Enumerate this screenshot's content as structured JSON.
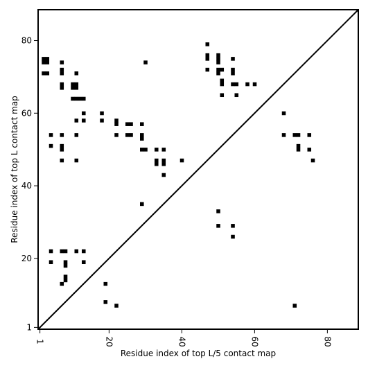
{
  "chart_data": {
    "type": "scatter",
    "title": "",
    "xlabel": "Residue index of top L/5 contact map",
    "ylabel": "Residue index of top L contact map",
    "xlim": [
      0.5,
      88.5
    ],
    "ylim": [
      0.5,
      88.5
    ],
    "xticks": [
      1,
      20,
      40,
      60,
      80
    ],
    "yticks": [
      1,
      20,
      40,
      60,
      80
    ],
    "grid": false,
    "legend": "none",
    "marker_color": "#000000",
    "diagonal_line": true,
    "series": [
      {
        "points": [
          [
            2,
            75
          ],
          [
            3,
            75
          ],
          [
            2,
            74
          ],
          [
            3,
            74
          ],
          [
            2,
            71
          ],
          [
            3,
            71
          ],
          [
            7,
            74
          ],
          [
            7,
            72
          ],
          [
            7,
            71
          ],
          [
            7,
            68
          ],
          [
            7,
            67
          ],
          [
            10,
            68
          ],
          [
            11,
            68
          ],
          [
            10,
            67
          ],
          [
            11,
            67
          ],
          [
            11,
            71
          ],
          [
            10,
            64
          ],
          [
            11,
            64
          ],
          [
            12,
            64
          ],
          [
            13,
            64
          ],
          [
            30,
            74
          ],
          [
            47,
            79
          ],
          [
            47,
            76
          ],
          [
            47,
            75
          ],
          [
            47,
            72
          ],
          [
            50,
            76
          ],
          [
            50,
            75
          ],
          [
            50,
            74
          ],
          [
            50,
            72
          ],
          [
            51,
            72
          ],
          [
            50,
            71
          ],
          [
            54,
            75
          ],
          [
            54,
            72
          ],
          [
            54,
            71
          ],
          [
            51,
            69
          ],
          [
            51,
            68
          ],
          [
            54,
            68
          ],
          [
            55,
            68
          ],
          [
            58,
            68
          ],
          [
            60,
            68
          ],
          [
            51,
            65
          ],
          [
            55,
            65
          ],
          [
            13,
            60
          ],
          [
            18,
            60
          ],
          [
            11,
            58
          ],
          [
            13,
            58
          ],
          [
            18,
            58
          ],
          [
            22,
            58
          ],
          [
            22,
            57
          ],
          [
            25,
            57
          ],
          [
            26,
            57
          ],
          [
            29,
            57
          ],
          [
            4,
            54
          ],
          [
            7,
            54
          ],
          [
            11,
            54
          ],
          [
            22,
            54
          ],
          [
            25,
            54
          ],
          [
            26,
            54
          ],
          [
            29,
            54
          ],
          [
            29,
            53
          ],
          [
            4,
            51
          ],
          [
            7,
            51
          ],
          [
            7,
            50
          ],
          [
            29,
            50
          ],
          [
            30,
            50
          ],
          [
            33,
            50
          ],
          [
            35,
            50
          ],
          [
            7,
            47
          ],
          [
            11,
            47
          ],
          [
            33,
            47
          ],
          [
            33,
            46
          ],
          [
            35,
            47
          ],
          [
            35,
            46
          ],
          [
            40,
            47
          ],
          [
            35,
            43
          ],
          [
            68,
            60
          ],
          [
            68,
            54
          ],
          [
            71,
            54
          ],
          [
            72,
            54
          ],
          [
            75,
            54
          ],
          [
            72,
            51
          ],
          [
            72,
            50
          ],
          [
            75,
            50
          ],
          [
            76,
            47
          ],
          [
            29,
            35
          ],
          [
            50,
            33
          ],
          [
            50,
            29
          ],
          [
            54,
            29
          ],
          [
            54,
            26
          ],
          [
            4,
            22
          ],
          [
            7,
            22
          ],
          [
            8,
            22
          ],
          [
            11,
            22
          ],
          [
            13,
            22
          ],
          [
            4,
            19
          ],
          [
            8,
            19
          ],
          [
            8,
            18
          ],
          [
            13,
            19
          ],
          [
            8,
            15
          ],
          [
            8,
            14
          ],
          [
            7,
            13
          ],
          [
            19,
            13
          ],
          [
            19,
            8
          ],
          [
            22,
            7
          ],
          [
            71,
            7
          ]
        ]
      }
    ]
  }
}
